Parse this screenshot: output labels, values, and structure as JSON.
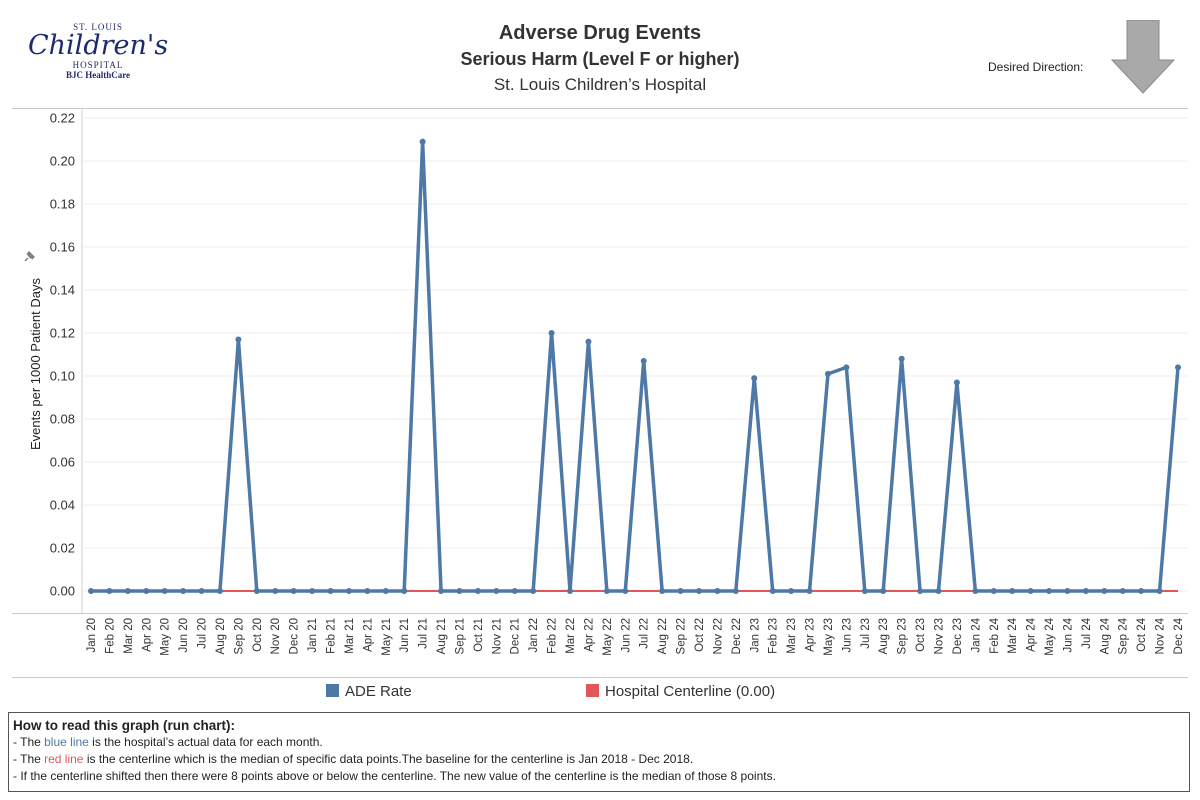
{
  "logo": {
    "top": "ST. LOUIS",
    "main": "Childre",
    "main_end": "'s",
    "sub": "HOSPITAL",
    "bjc": "BJC HealthCare"
  },
  "header": {
    "title": "Adverse Drug Events",
    "subtitle": "Serious Harm (Level F or higher)",
    "hospital": "St. Louis Children’s Hospital",
    "desired_direction_label": "Desired Direction:"
  },
  "legend": {
    "series_label": "ADE Rate",
    "centerline_label": "Hospital Centerline (0.00)"
  },
  "info": {
    "heading": "How to read this graph (run chart):",
    "line1_pre": "- The ",
    "line1_color": "blue line",
    "line1_post": " is the hospital’s actual data for each month.",
    "line2_pre": "- The ",
    "line2_color": "red line",
    "line2_post": " is the centerline which is the median of specific data points.The baseline for the centerline is Jan 2018 - Dec 2018.",
    "line3": "- If the centerline shifted then there were 8 points above or below the centerline. The new value of the centerline is the median of those 8 points."
  },
  "chart_data": {
    "type": "line",
    "ylabel": "Events per 1000 Patient Days",
    "ylim": [
      0,
      0.22
    ],
    "yticks": [
      "0.00",
      "0.02",
      "0.04",
      "0.06",
      "0.08",
      "0.10",
      "0.12",
      "0.14",
      "0.16",
      "0.18",
      "0.20",
      "0.22"
    ],
    "categories": [
      "Jan 20",
      "Feb 20",
      "Mar 20",
      "Apr 20",
      "May 20",
      "Jun 20",
      "Jul 20",
      "Aug 20",
      "Sep 20",
      "Oct 20",
      "Nov 20",
      "Dec 20",
      "Jan 21",
      "Feb 21",
      "Mar 21",
      "Apr 21",
      "May 21",
      "Jun 21",
      "Jul 21",
      "Aug 21",
      "Sep 21",
      "Oct 21",
      "Nov 21",
      "Dec 21",
      "Jan 22",
      "Feb 22",
      "Mar 22",
      "Apr 22",
      "May 22",
      "Jun 22",
      "Jul 22",
      "Aug 22",
      "Sep 22",
      "Oct 22",
      "Nov 22",
      "Dec 22",
      "Jan 23",
      "Feb 23",
      "Mar 23",
      "Apr 23",
      "May 23",
      "Jun 23",
      "Jul 23",
      "Aug 23",
      "Sep 23",
      "Oct 23",
      "Nov 23",
      "Dec 23",
      "Jan 24",
      "Feb 24",
      "Mar 24",
      "Apr 24",
      "May 24",
      "Jun 24",
      "Jul 24",
      "Aug 24",
      "Sep 24",
      "Oct 24",
      "Nov 24",
      "Dec 24"
    ],
    "series": [
      {
        "name": "ADE Rate",
        "color": "#4e79a7",
        "values": [
          0,
          0,
          0,
          0,
          0,
          0,
          0,
          0,
          0.117,
          0,
          0,
          0,
          0,
          0,
          0,
          0,
          0,
          0,
          0.209,
          0,
          0,
          0,
          0,
          0,
          0,
          0.12,
          0,
          0.116,
          0,
          0,
          0.107,
          0,
          0,
          0,
          0,
          0,
          0.099,
          0,
          0,
          0,
          0.101,
          0.104,
          0,
          0,
          0.108,
          0,
          0,
          0.097,
          0,
          0,
          0,
          0,
          0,
          0,
          0,
          0,
          0,
          0,
          0,
          0.104
        ]
      },
      {
        "name": "Hospital Centerline (0.00)",
        "color": "#e15759",
        "constant": 0.0
      }
    ],
    "grid": true,
    "legend_position": "bottom"
  }
}
